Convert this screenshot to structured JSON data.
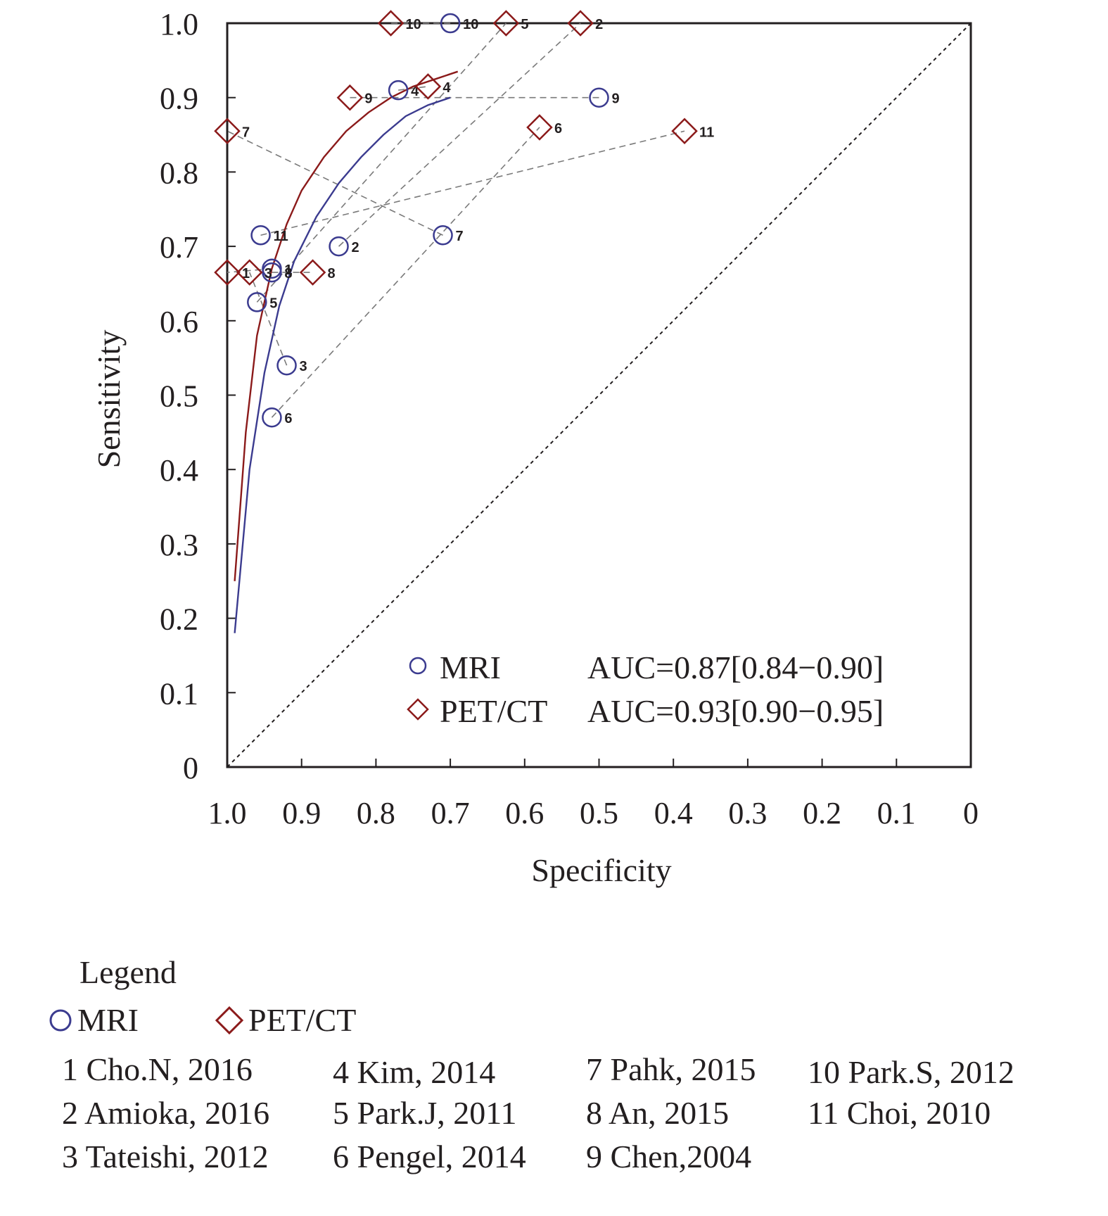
{
  "chart_data": {
    "type": "scatter",
    "title": "",
    "xlabel": "Specificity",
    "ylabel": "Sensitivity",
    "xlim": [
      1.0,
      0
    ],
    "ylim": [
      0,
      1.0
    ],
    "x_reversed": true,
    "x_ticks": [
      "1.0",
      "0.9",
      "0.8",
      "0.7",
      "0.6",
      "0.5",
      "0.4",
      "0.3",
      "0.2",
      "0.1",
      "0"
    ],
    "y_ticks": [
      "0",
      "0.1",
      "0.2",
      "0.3",
      "0.4",
      "0.5",
      "0.6",
      "0.7",
      "0.8",
      "0.9",
      "1.0"
    ],
    "grid": false,
    "diagonal_reference": true,
    "series": [
      {
        "name": "MRI",
        "marker": "circle",
        "color": "#3b3b8f",
        "points": [
          {
            "study": "1",
            "specificity": 0.94,
            "sensitivity": 0.67
          },
          {
            "study": "2",
            "specificity": 0.85,
            "sensitivity": 0.7
          },
          {
            "study": "3",
            "specificity": 0.92,
            "sensitivity": 0.54
          },
          {
            "study": "4",
            "specificity": 0.77,
            "sensitivity": 0.91
          },
          {
            "study": "5",
            "specificity": 0.96,
            "sensitivity": 0.625
          },
          {
            "study": "6",
            "specificity": 0.94,
            "sensitivity": 0.47
          },
          {
            "study": "7",
            "specificity": 0.71,
            "sensitivity": 0.715
          },
          {
            "study": "8",
            "specificity": 0.94,
            "sensitivity": 0.665
          },
          {
            "study": "9",
            "specificity": 0.5,
            "sensitivity": 0.9
          },
          {
            "study": "10",
            "specificity": 0.7,
            "sensitivity": 1.0
          },
          {
            "study": "11",
            "specificity": 0.955,
            "sensitivity": 0.715
          }
        ],
        "auc_label": "AUC=0.87[0.84−0.90]",
        "curve": [
          [
            0.99,
            0.18
          ],
          [
            0.97,
            0.4
          ],
          [
            0.95,
            0.53
          ],
          [
            0.93,
            0.62
          ],
          [
            0.91,
            0.68
          ],
          [
            0.88,
            0.74
          ],
          [
            0.85,
            0.785
          ],
          [
            0.82,
            0.82
          ],
          [
            0.79,
            0.85
          ],
          [
            0.76,
            0.875
          ],
          [
            0.73,
            0.89
          ],
          [
            0.7,
            0.9
          ]
        ]
      },
      {
        "name": "PET/CT",
        "marker": "diamond",
        "color": "#8b1a1a",
        "points": [
          {
            "study": "1",
            "specificity": 1.0,
            "sensitivity": 0.665
          },
          {
            "study": "2",
            "specificity": 0.525,
            "sensitivity": 1.0
          },
          {
            "study": "3",
            "specificity": 0.97,
            "sensitivity": 0.665
          },
          {
            "study": "4",
            "specificity": 0.73,
            "sensitivity": 0.915
          },
          {
            "study": "5",
            "specificity": 0.625,
            "sensitivity": 1.0
          },
          {
            "study": "6",
            "specificity": 0.58,
            "sensitivity": 0.86
          },
          {
            "study": "7",
            "specificity": 1.0,
            "sensitivity": 0.855
          },
          {
            "study": "8",
            "specificity": 0.885,
            "sensitivity": 0.665
          },
          {
            "study": "9",
            "specificity": 0.835,
            "sensitivity": 0.9
          },
          {
            "study": "10",
            "specificity": 0.78,
            "sensitivity": 1.0
          },
          {
            "study": "11",
            "specificity": 0.385,
            "sensitivity": 0.855
          }
        ],
        "auc_label": "AUC=0.93[0.90−0.95]",
        "curve": [
          [
            0.99,
            0.25
          ],
          [
            0.975,
            0.45
          ],
          [
            0.96,
            0.58
          ],
          [
            0.94,
            0.67
          ],
          [
            0.92,
            0.73
          ],
          [
            0.9,
            0.775
          ],
          [
            0.87,
            0.82
          ],
          [
            0.84,
            0.855
          ],
          [
            0.81,
            0.88
          ],
          [
            0.78,
            0.9
          ],
          [
            0.75,
            0.915
          ],
          [
            0.72,
            0.925
          ],
          [
            0.69,
            0.935
          ]
        ]
      }
    ],
    "inset_legend": {
      "placement": "bottom-right",
      "rows": [
        {
          "label": "MRI",
          "auc": "AUC=0.87[0.84−0.90]"
        },
        {
          "label": "PET/CT",
          "auc": "AUC=0.93[0.90−0.95]"
        }
      ]
    }
  },
  "legend": {
    "title": "Legend",
    "keys": [
      "MRI",
      "PET/CT"
    ],
    "studies": [
      "1 Cho.N, 2016",
      "2 Amioka, 2016",
      "3 Tateishi, 2012",
      "4 Kim, 2014",
      "5 Park.J, 2011",
      "6 Pengel, 2014",
      "7 Pahk, 2015",
      "8 An, 2015",
      "9 Chen,2004",
      "10 Park.S, 2012",
      "11 Choi, 2010"
    ]
  }
}
